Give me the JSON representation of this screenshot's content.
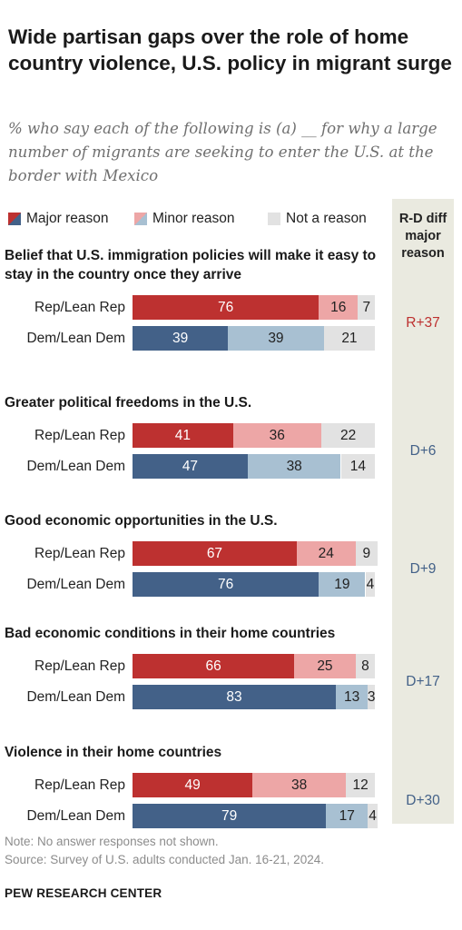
{
  "title": "Wide partisan gaps over the role of home country violence, U.S. policy in migrant surge",
  "subtitle": "% who say each of the following is (a) __ for why a large number of migrants are seeking to enter the U.S. at the border with Mexico",
  "legend": {
    "major": "Major reason",
    "minor": "Minor reason",
    "none": "Not a reason"
  },
  "diff_header": "R-D diff major reason",
  "colors": {
    "rep_major": "#bd3130",
    "rep_minor": "#eda6a6",
    "dem_major": "#436188",
    "dem_minor": "#a8c0d2",
    "none": "#e2e2e2",
    "diff_rep": "#bd3130",
    "diff_dem": "#436188",
    "diff_bg": "#eaeae0"
  },
  "chart_data": {
    "type": "bar",
    "stacked": true,
    "orientation": "horizontal",
    "series_names": [
      "Major reason",
      "Minor reason",
      "Not a reason"
    ],
    "groups": [
      {
        "label": "Belief that U.S. immigration policies will make it easy to stay in the country once they arrive",
        "rows": [
          {
            "label": "Rep/Lean Rep",
            "party": "rep",
            "values": [
              76,
              16,
              7
            ]
          },
          {
            "label": "Dem/Lean Dem",
            "party": "dem",
            "values": [
              39,
              39,
              21
            ]
          }
        ],
        "diff": "R+37",
        "diff_party": "rep"
      },
      {
        "label": "Greater political freedoms in the U.S.",
        "rows": [
          {
            "label": "Rep/Lean Rep",
            "party": "rep",
            "values": [
              41,
              36,
              22
            ]
          },
          {
            "label": "Dem/Lean Dem",
            "party": "dem",
            "values": [
              47,
              38,
              14
            ]
          }
        ],
        "diff": "D+6",
        "diff_party": "dem"
      },
      {
        "label": "Good economic opportunities in the U.S.",
        "rows": [
          {
            "label": "Rep/Lean Rep",
            "party": "rep",
            "values": [
              67,
              24,
              9
            ]
          },
          {
            "label": "Dem/Lean Dem",
            "party": "dem",
            "values": [
              76,
              19,
              4
            ]
          }
        ],
        "diff": "D+9",
        "diff_party": "dem"
      },
      {
        "label": "Bad economic conditions in their home countries",
        "rows": [
          {
            "label": "Rep/Lean Rep",
            "party": "rep",
            "values": [
              66,
              25,
              8
            ]
          },
          {
            "label": "Dem/Lean Dem",
            "party": "dem",
            "values": [
              83,
              13,
              3
            ]
          }
        ],
        "diff": "D+17",
        "diff_party": "dem"
      },
      {
        "label": "Violence in their home countries",
        "rows": [
          {
            "label": "Rep/Lean Rep",
            "party": "rep",
            "values": [
              49,
              38,
              12
            ]
          },
          {
            "label": "Dem/Lean Dem",
            "party": "dem",
            "values": [
              79,
              17,
              4
            ]
          }
        ],
        "diff": "D+30",
        "diff_party": "dem"
      }
    ],
    "xlim": [
      0,
      100
    ]
  },
  "note": "Note: No answer responses not shown.",
  "source": "Source: Survey of U.S. adults conducted Jan. 16-21, 2024.",
  "footer": "PEW RESEARCH CENTER"
}
